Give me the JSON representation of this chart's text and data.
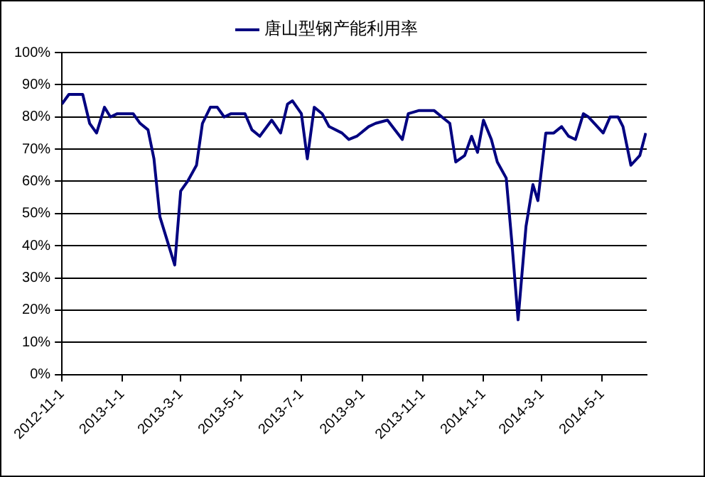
{
  "chart_data": {
    "type": "line",
    "legend": "top",
    "grid": "y",
    "marker": "none",
    "line_style": "solid",
    "x": [
      "2012-11-01",
      "2012-11-08",
      "2012-11-15",
      "2012-11-22",
      "2012-11-29",
      "2012-12-06",
      "2012-12-14",
      "2012-12-20",
      "2012-12-27",
      "2013-01-12",
      "2013-01-19",
      "2013-01-27",
      "2013-02-02",
      "2013-02-08",
      "2013-02-23",
      "2013-03-01",
      "2013-03-08",
      "2013-03-17",
      "2013-03-23",
      "2013-03-31",
      "2013-04-07",
      "2013-04-14",
      "2013-04-21",
      "2013-05-05",
      "2013-05-12",
      "2013-05-20",
      "2013-06-01",
      "2013-06-10",
      "2013-06-17",
      "2013-06-22",
      "2013-07-01",
      "2013-07-07",
      "2013-07-14",
      "2013-07-22",
      "2013-07-29",
      "2013-08-11",
      "2013-08-18",
      "2013-08-26",
      "2013-09-07",
      "2013-09-14",
      "2013-09-26",
      "2013-10-11",
      "2013-10-17",
      "2013-10-28",
      "2013-11-12",
      "2013-11-20",
      "2013-11-28",
      "2013-12-04",
      "2013-12-13",
      "2013-12-20",
      "2013-12-26",
      "2014-01-01",
      "2014-01-09",
      "2014-01-15",
      "2014-01-24",
      "2014-01-30",
      "2014-02-05",
      "2014-02-13",
      "2014-02-20",
      "2014-02-25",
      "2014-03-05",
      "2014-03-13",
      "2014-03-21",
      "2014-03-28",
      "2014-04-04",
      "2014-04-12",
      "2014-04-17",
      "2014-05-02",
      "2014-05-09",
      "2014-05-17",
      "2014-05-22",
      "2014-05-30",
      "2014-06-08",
      "2014-06-14"
    ],
    "series": [
      {
        "name": "唐山型钢产能利用率",
        "color": "#000080",
        "values": [
          84,
          87,
          87,
          87,
          78,
          75,
          83,
          80,
          81,
          81,
          78,
          76,
          67,
          49,
          34,
          57,
          60,
          65,
          78,
          83,
          83,
          80,
          81,
          81,
          76,
          74,
          79,
          75,
          84,
          85,
          81,
          67,
          83,
          81,
          77,
          75,
          73,
          74,
          77,
          78,
          79,
          73,
          81,
          82,
          82,
          80,
          78,
          66,
          68,
          74,
          69,
          79,
          73,
          66,
          61,
          40,
          17,
          46,
          59,
          54,
          75,
          75,
          77,
          74,
          73,
          81,
          80,
          75,
          80,
          80,
          77,
          65,
          68,
          75
        ]
      }
    ],
    "xlim": [
      "2012-11-01",
      "2014-06-15"
    ],
    "xticks": [
      {
        "value": "2012-11-01",
        "label": "2012-11-1"
      },
      {
        "value": "2013-01-01",
        "label": "2013-1-1"
      },
      {
        "value": "2013-03-01",
        "label": "2013-3-1"
      },
      {
        "value": "2013-05-01",
        "label": "2013-5-1"
      },
      {
        "value": "2013-07-01",
        "label": "2013-7-1"
      },
      {
        "value": "2013-09-01",
        "label": "2013-9-1"
      },
      {
        "value": "2013-11-01",
        "label": "2013-11-1"
      },
      {
        "value": "2014-01-01",
        "label": "2014-1-1"
      },
      {
        "value": "2014-03-01",
        "label": "2014-3-1"
      },
      {
        "value": "2014-05-01",
        "label": "2014-5-1"
      }
    ],
    "ylim": [
      0,
      100
    ],
    "yticks": [
      {
        "value": 0,
        "label": "0%"
      },
      {
        "value": 10,
        "label": "10%"
      },
      {
        "value": 20,
        "label": "20%"
      },
      {
        "value": 30,
        "label": "30%"
      },
      {
        "value": 40,
        "label": "40%"
      },
      {
        "value": 50,
        "label": "50%"
      },
      {
        "value": 60,
        "label": "60%"
      },
      {
        "value": 70,
        "label": "70%"
      },
      {
        "value": 80,
        "label": "80%"
      },
      {
        "value": 90,
        "label": "90%"
      },
      {
        "value": 100,
        "label": "100%"
      }
    ]
  }
}
